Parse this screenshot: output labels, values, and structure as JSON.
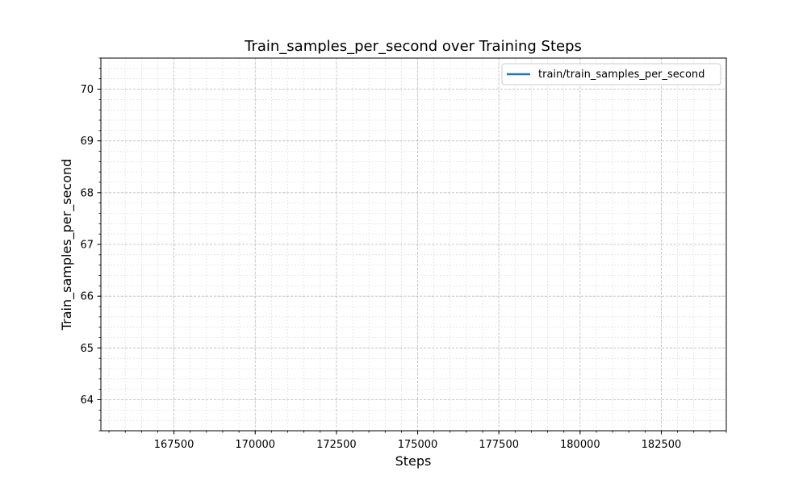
{
  "chart_data": {
    "type": "line",
    "title": "Train_samples_per_second over Training Steps",
    "xlabel": "Steps",
    "ylabel": "Train_samples_per_second",
    "xlim": [
      165250,
      184500
    ],
    "ylim": [
      63.4,
      70.6
    ],
    "x_ticks": [
      167500,
      170000,
      172500,
      175000,
      177500,
      180000,
      182500
    ],
    "y_ticks": [
      64,
      65,
      66,
      67,
      68,
      69,
      70
    ],
    "grid": true,
    "grid_minor": true,
    "legend_position": "top-right",
    "series": [
      {
        "name": "train/train_samples_per_second",
        "color": "#1f77b4",
        "x": [],
        "y": []
      }
    ]
  }
}
